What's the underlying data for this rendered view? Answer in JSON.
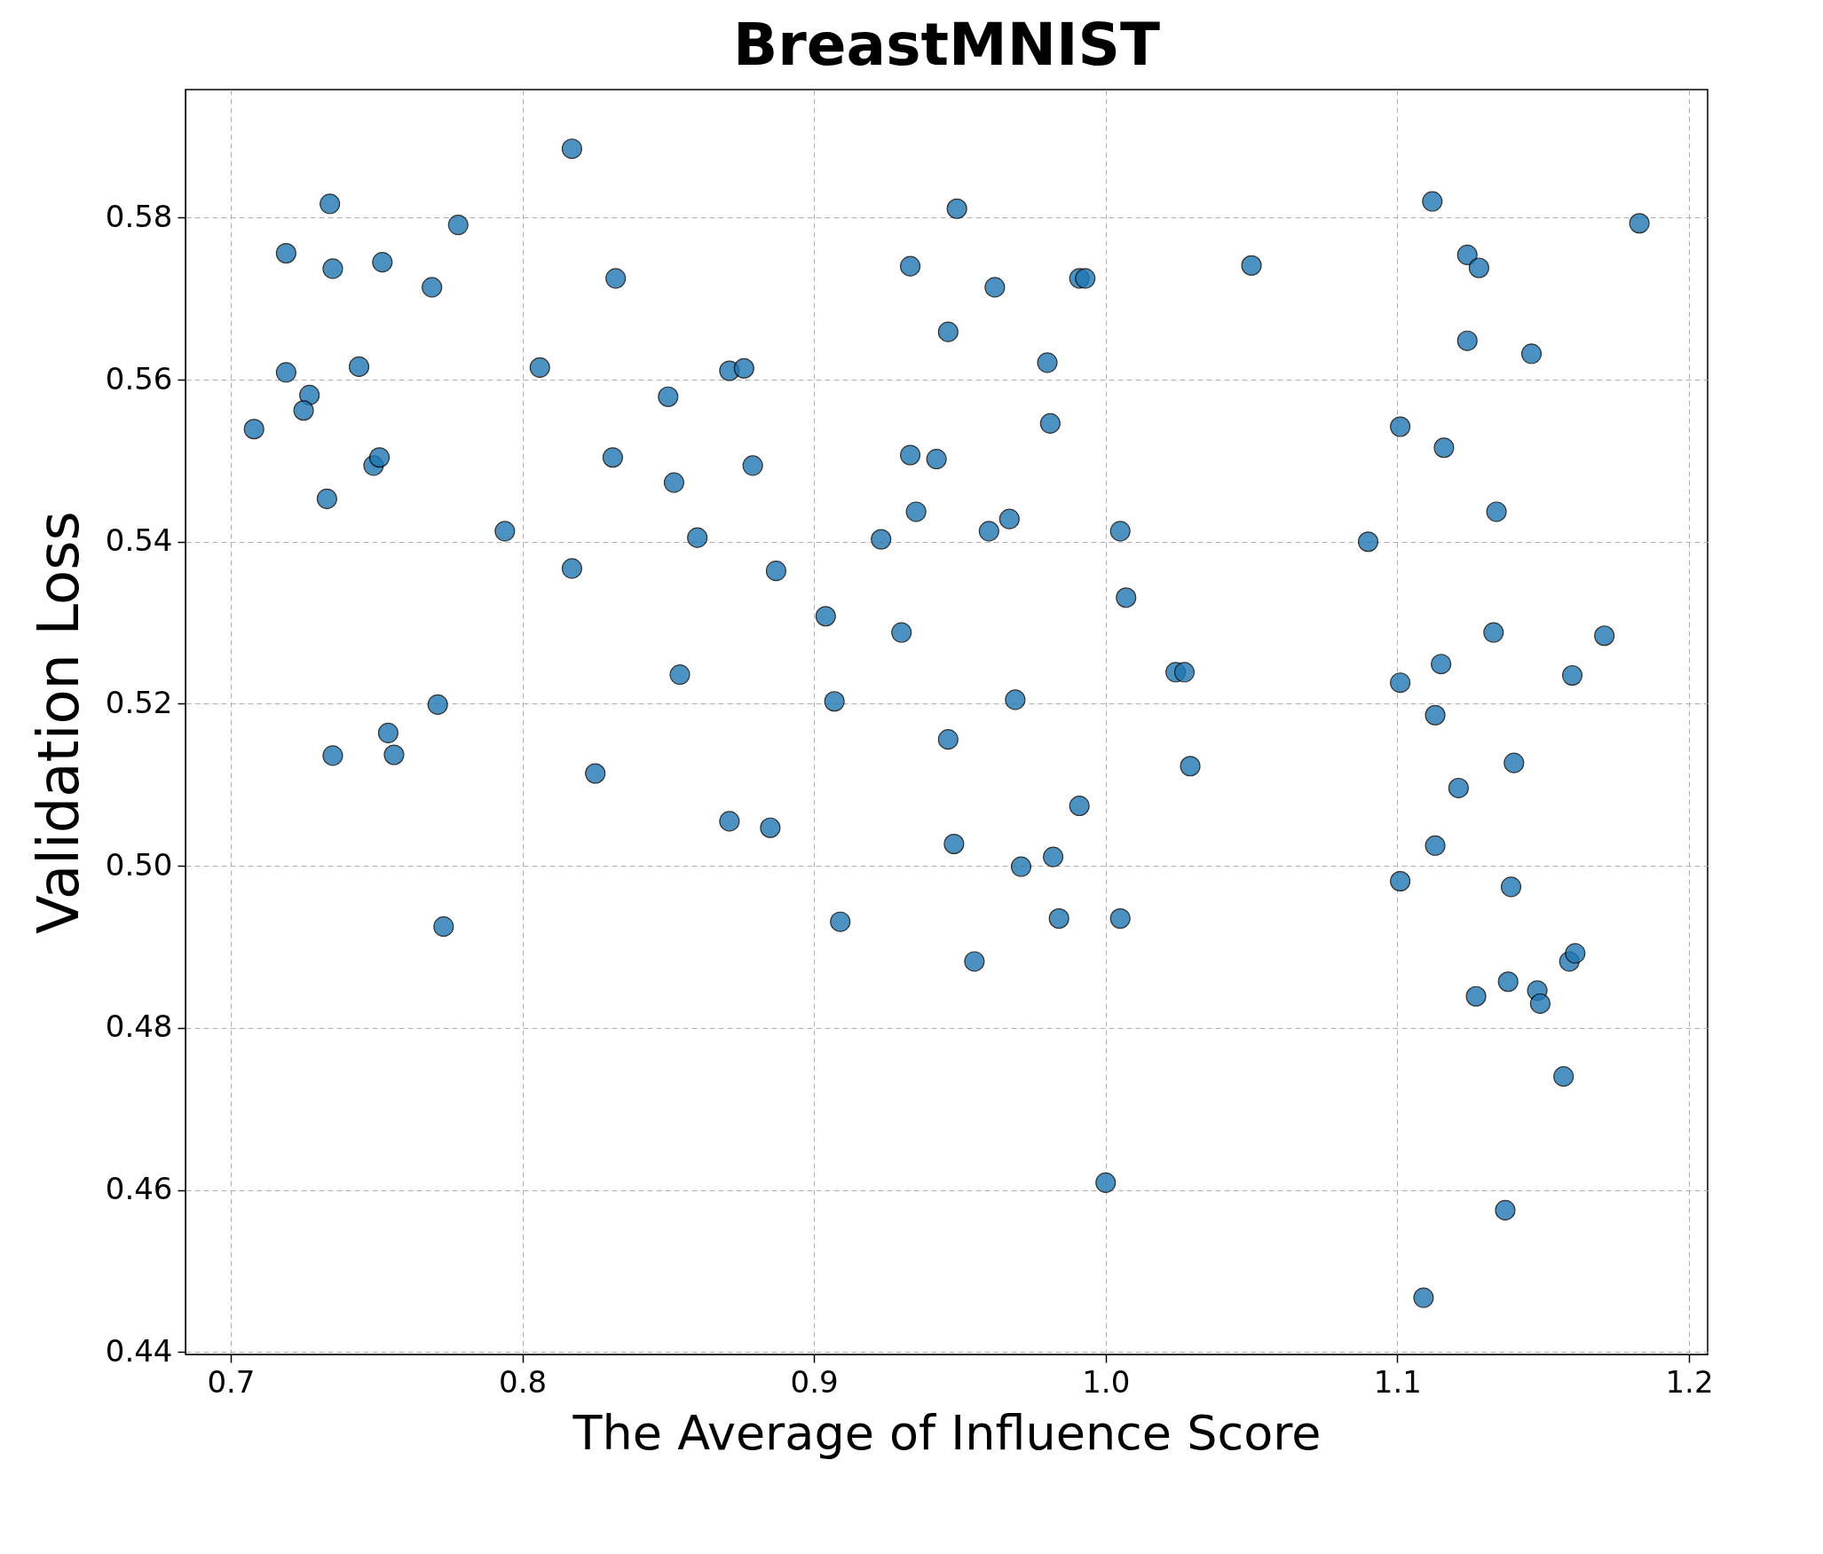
{
  "chart_data": {
    "type": "scatter",
    "title": "BreastMNIST",
    "xlabel": "The Average of Influence Score",
    "ylabel": "Validation Loss",
    "x": [
      0.708,
      0.719,
      0.719,
      0.727,
      0.725,
      0.734,
      0.735,
      0.733,
      0.735,
      0.744,
      0.752,
      0.749,
      0.751,
      0.754,
      0.756,
      0.769,
      0.778,
      0.771,
      0.773,
      0.794,
      0.806,
      0.817,
      0.817,
      0.832,
      0.831,
      0.825,
      0.85,
      0.852,
      0.854,
      0.86,
      0.871,
      0.876,
      0.879,
      0.887,
      0.871,
      0.885,
      0.904,
      0.907,
      0.909,
      0.923,
      0.93,
      0.933,
      0.933,
      0.935,
      0.942,
      0.946,
      0.949,
      0.946,
      0.948,
      0.955,
      0.962,
      0.96,
      0.967,
      0.969,
      0.971,
      0.98,
      0.981,
      0.982,
      0.984,
      0.991,
      0.993,
      0.991,
      1.0,
      1.005,
      1.007,
      1.005,
      1.024,
      1.027,
      1.029,
      1.05,
      1.09,
      1.101,
      1.101,
      1.101,
      1.112,
      1.116,
      1.115,
      1.113,
      1.113,
      1.109,
      1.121,
      1.124,
      1.128,
      1.124,
      1.127,
      1.134,
      1.133,
      1.14,
      1.139,
      1.138,
      1.137,
      1.146,
      1.148,
      1.149,
      1.157,
      1.16,
      1.159,
      1.161,
      1.171,
      1.183
    ],
    "series": [
      {
        "color": "#1f77b4",
        "values": [
          0.5539,
          0.5756,
          0.5609,
          0.5581,
          0.5562,
          0.5817,
          0.5737,
          0.5453,
          0.5136,
          0.5616,
          0.5745,
          0.5494,
          0.5504,
          0.5164,
          0.5137,
          0.5714,
          0.5791,
          0.5199,
          0.4925,
          0.5413,
          0.5615,
          0.5885,
          0.5367,
          0.5725,
          0.5504,
          0.5114,
          0.5579,
          0.5473,
          0.5236,
          0.5405,
          0.5611,
          0.5614,
          0.5494,
          0.5364,
          0.5055,
          0.5047,
          0.5308,
          0.5203,
          0.4931,
          0.5403,
          0.5288,
          0.574,
          0.5507,
          0.5437,
          0.5502,
          0.5659,
          0.5811,
          0.5156,
          0.5027,
          0.4882,
          0.5714,
          0.5413,
          0.5428,
          0.5205,
          0.4999,
          0.5621,
          0.5546,
          0.5011,
          0.4935,
          0.5725,
          0.5725,
          0.5074,
          0.4609,
          0.5413,
          0.5331,
          0.4935,
          0.5239,
          0.5239,
          0.5123,
          0.5741,
          0.54,
          0.5542,
          0.5226,
          0.4981,
          0.582,
          0.5516,
          0.5249,
          0.5186,
          0.5025,
          0.4467,
          0.5096,
          0.5754,
          0.5738,
          0.5648,
          0.4839,
          0.5437,
          0.5288,
          0.5127,
          0.4974,
          0.4857,
          0.4575,
          0.5632,
          0.4846,
          0.483,
          0.474,
          0.5235,
          0.4882,
          0.4892,
          0.5284,
          0.5793
        ]
      }
    ],
    "xlim": [
      0.6845,
      1.2064
    ],
    "ylim": [
      0.4397,
      0.5958
    ],
    "xticks": [
      0.7,
      0.8,
      0.9,
      {
        "value": 1,
        "label": "1.0"
      },
      1.1,
      1.2
    ],
    "yticks": [
      0.44,
      0.46,
      0.48,
      {
        "value": 0.5,
        "label": "0.50"
      },
      0.52,
      0.54,
      0.56,
      0.58
    ],
    "grid": true,
    "marker": "circle"
  }
}
